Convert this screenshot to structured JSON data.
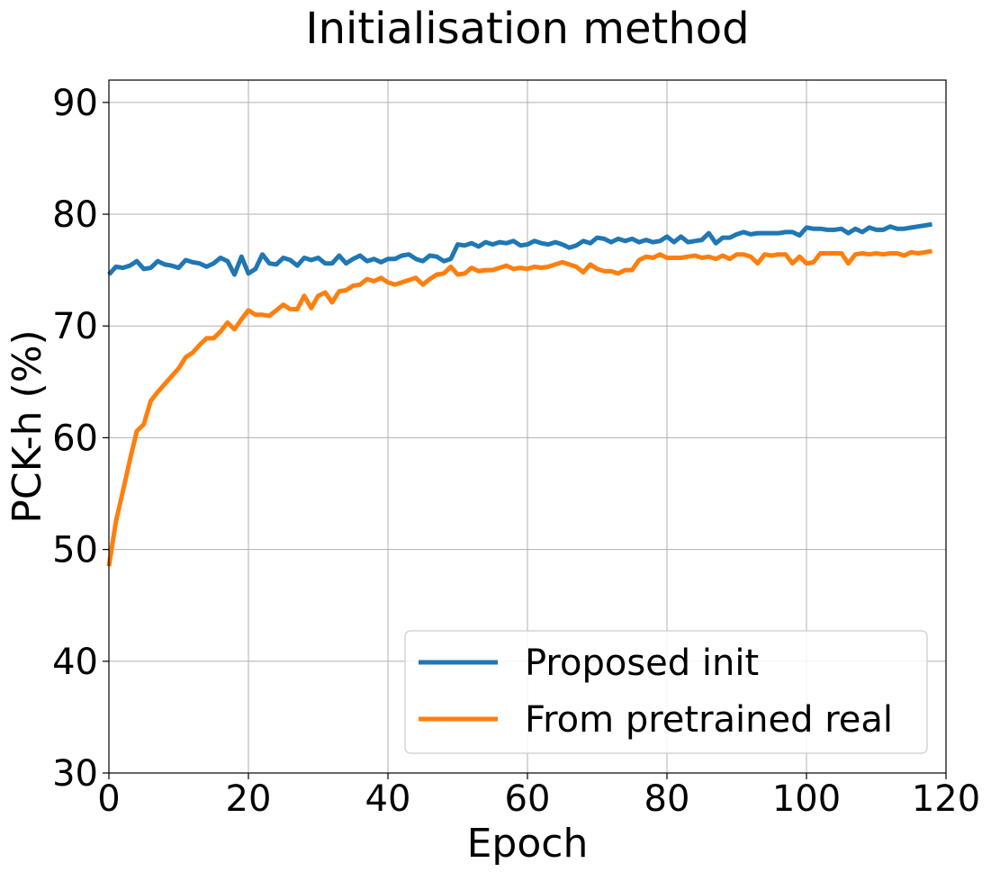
{
  "chart_data": {
    "type": "line",
    "title": "Initialisation method",
    "xlabel": "Epoch",
    "ylabel": "PCK-h (%)",
    "xlim": [
      0,
      120
    ],
    "ylim": [
      30,
      92
    ],
    "xticks": [
      0,
      20,
      40,
      60,
      80,
      100,
      120
    ],
    "yticks": [
      30,
      40,
      50,
      60,
      70,
      80,
      90
    ],
    "grid": true,
    "legend_position": "lower-right",
    "series": [
      {
        "name": "Proposed init",
        "color": "#1f77b4",
        "x": [
          0,
          1,
          2,
          3,
          4,
          5,
          6,
          7,
          8,
          9,
          10,
          11,
          12,
          13,
          14,
          15,
          16,
          17,
          18,
          19,
          20,
          21,
          22,
          23,
          24,
          25,
          26,
          27,
          28,
          29,
          30,
          31,
          32,
          33,
          34,
          35,
          36,
          37,
          38,
          39,
          40,
          41,
          42,
          43,
          44,
          45,
          46,
          47,
          48,
          49,
          50,
          51,
          52,
          53,
          54,
          55,
          56,
          57,
          58,
          59,
          60,
          61,
          62,
          63,
          64,
          65,
          66,
          67,
          68,
          69,
          70,
          71,
          72,
          73,
          74,
          75,
          76,
          77,
          78,
          79,
          80,
          81,
          82,
          83,
          84,
          85,
          86,
          87,
          88,
          89,
          90,
          91,
          92,
          93,
          94,
          95,
          96,
          97,
          98,
          99,
          100,
          101,
          102,
          103,
          104,
          105,
          106,
          107,
          108,
          109,
          110,
          111,
          112,
          113,
          114,
          115,
          116,
          117,
          118
        ],
        "y": [
          74.6,
          75.3,
          75.2,
          75.4,
          75.8,
          75.1,
          75.2,
          75.8,
          75.5,
          75.4,
          75.2,
          75.9,
          75.7,
          75.6,
          75.3,
          75.6,
          76.1,
          75.8,
          74.6,
          76.2,
          74.7,
          75.1,
          76.4,
          75.6,
          75.5,
          76.1,
          75.9,
          75.4,
          76.1,
          75.9,
          76.1,
          75.6,
          75.6,
          76.3,
          75.6,
          76.0,
          76.3,
          75.8,
          76.0,
          75.7,
          76.0,
          76.0,
          76.3,
          76.4,
          76.0,
          75.8,
          76.3,
          76.2,
          75.8,
          76.0,
          77.3,
          77.2,
          77.4,
          77.1,
          77.5,
          77.3,
          77.5,
          77.4,
          77.6,
          77.2,
          77.3,
          77.6,
          77.4,
          77.3,
          77.5,
          77.3,
          77.0,
          77.2,
          77.6,
          77.4,
          77.9,
          77.8,
          77.5,
          77.8,
          77.6,
          77.8,
          77.5,
          77.7,
          77.5,
          77.6,
          78.0,
          77.5,
          78.0,
          77.5,
          77.6,
          77.7,
          78.3,
          77.4,
          77.9,
          77.9,
          78.2,
          78.4,
          78.2,
          78.3,
          78.3,
          78.3,
          78.3,
          78.4,
          78.4,
          78.1,
          78.8,
          78.7,
          78.7,
          78.6,
          78.6,
          78.7,
          78.3,
          78.7,
          78.4,
          78.8,
          78.6,
          78.6,
          78.9,
          78.7,
          78.7,
          78.8,
          78.9,
          79.0,
          79.1
        ]
      },
      {
        "name": "From pretrained real",
        "color": "#ff7f0e",
        "x": [
          0,
          1,
          2,
          3,
          4,
          5,
          6,
          7,
          8,
          9,
          10,
          11,
          12,
          13,
          14,
          15,
          16,
          17,
          18,
          19,
          20,
          21,
          22,
          23,
          24,
          25,
          26,
          27,
          28,
          29,
          30,
          31,
          32,
          33,
          34,
          35,
          36,
          37,
          38,
          39,
          40,
          41,
          42,
          43,
          44,
          45,
          46,
          47,
          48,
          49,
          50,
          51,
          52,
          53,
          54,
          55,
          56,
          57,
          58,
          59,
          60,
          61,
          62,
          63,
          64,
          65,
          66,
          67,
          68,
          69,
          70,
          71,
          72,
          73,
          74,
          75,
          76,
          77,
          78,
          79,
          80,
          81,
          82,
          83,
          84,
          85,
          86,
          87,
          88,
          89,
          90,
          91,
          92,
          93,
          94,
          95,
          96,
          97,
          98,
          99,
          100,
          101,
          102,
          103,
          104,
          105,
          106,
          107,
          108,
          109,
          110,
          111,
          112,
          113,
          114,
          115,
          116,
          117,
          118
        ],
        "y": [
          48.5,
          52.5,
          55.2,
          58.0,
          60.6,
          61.2,
          63.3,
          64.1,
          64.8,
          65.5,
          66.2,
          67.2,
          67.6,
          68.3,
          68.9,
          68.9,
          69.5,
          70.3,
          69.7,
          70.6,
          71.4,
          71.0,
          71.0,
          70.9,
          71.4,
          71.9,
          71.5,
          71.5,
          72.7,
          71.6,
          72.7,
          73.0,
          72.1,
          73.1,
          73.2,
          73.6,
          73.7,
          74.2,
          74.0,
          74.3,
          73.9,
          73.7,
          73.9,
          74.1,
          74.3,
          73.7,
          74.2,
          74.6,
          74.7,
          75.3,
          74.6,
          74.7,
          75.2,
          74.9,
          75.0,
          75.0,
          75.2,
          75.4,
          75.1,
          75.2,
          75.1,
          75.3,
          75.2,
          75.3,
          75.5,
          75.7,
          75.5,
          75.3,
          74.8,
          75.5,
          75.1,
          74.9,
          74.9,
          74.7,
          75.0,
          75.0,
          75.9,
          76.2,
          76.1,
          76.4,
          76.1,
          76.1,
          76.1,
          76.2,
          76.3,
          76.1,
          76.2,
          76.0,
          76.3,
          76.0,
          76.4,
          76.4,
          76.2,
          75.6,
          76.4,
          76.3,
          76.4,
          76.4,
          75.6,
          76.2,
          75.6,
          75.7,
          76.5,
          76.5,
          76.5,
          76.5,
          75.6,
          76.4,
          76.5,
          76.4,
          76.5,
          76.4,
          76.5,
          76.5,
          76.3,
          76.6,
          76.5,
          76.6,
          76.7
        ]
      }
    ]
  }
}
